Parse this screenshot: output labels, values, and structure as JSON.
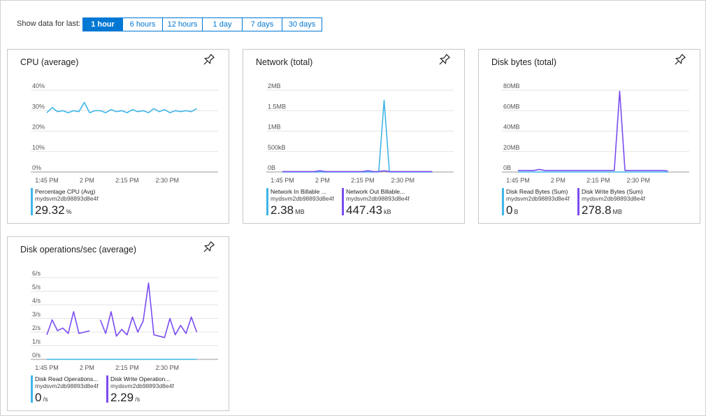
{
  "toolbar": {
    "label": "Show data for last:",
    "options": [
      "1 hour",
      "6 hours",
      "12 hours",
      "1 day",
      "7 days",
      "30 days"
    ],
    "selected_index": 0
  },
  "chart_data": [
    {
      "type": "line",
      "title": "CPU (average)",
      "x": [
        0,
        2,
        4,
        6,
        8,
        10,
        12,
        14,
        16,
        18,
        20,
        22,
        24,
        26,
        28,
        30,
        32,
        34,
        36,
        38,
        40,
        42,
        44,
        46,
        48,
        50,
        52,
        54,
        56
      ],
      "xlim": [
        -6,
        64
      ],
      "xticks": [
        {
          "value": 0,
          "label": "1:45 PM"
        },
        {
          "value": 15,
          "label": "2 PM"
        },
        {
          "value": 30,
          "label": "2:15 PM"
        },
        {
          "value": 45,
          "label": "2:30 PM"
        }
      ],
      "ylim": [
        0,
        40
      ],
      "yticks": [
        {
          "value": 0,
          "label": "0%"
        },
        {
          "value": 10,
          "label": "10%"
        },
        {
          "value": 20,
          "label": "20%"
        },
        {
          "value": 30,
          "label": "30%"
        },
        {
          "value": 40,
          "label": "40%"
        }
      ],
      "grid": true,
      "series": [
        {
          "name": "Percentage CPU (Avg)",
          "resource": "mydsvm2db98893d8e4f",
          "color": "#3fb6e8",
          "summary": 29.32,
          "summary_unit": "%",
          "values": [
            29,
            31.5,
            29.5,
            30,
            29,
            30,
            29.5,
            34,
            29,
            30,
            30,
            29,
            30.5,
            29.5,
            30,
            29,
            30.5,
            29.5,
            30,
            29,
            31,
            29.5,
            30.5,
            29,
            30,
            29.5,
            30,
            29.5,
            31
          ]
        }
      ]
    },
    {
      "type": "line",
      "title": "Network (total)",
      "x": [
        0,
        2,
        4,
        6,
        8,
        10,
        12,
        14,
        16,
        18,
        20,
        22,
        24,
        26,
        28,
        30,
        32,
        34,
        36,
        38,
        40,
        42,
        44,
        46,
        48,
        50,
        52,
        54,
        56
      ],
      "xlim": [
        -6,
        64
      ],
      "xticks": [
        {
          "value": 0,
          "label": "1:45 PM"
        },
        {
          "value": 15,
          "label": "2 PM"
        },
        {
          "value": 30,
          "label": "2:15 PM"
        },
        {
          "value": 45,
          "label": "2:30 PM"
        }
      ],
      "ylim": [
        0,
        2
      ],
      "yticks": [
        {
          "value": 0,
          "label": "0B"
        },
        {
          "value": 0.5,
          "label": "500kB"
        },
        {
          "value": 1,
          "label": "1MB"
        },
        {
          "value": 1.5,
          "label": "1.5MB"
        },
        {
          "value": 2,
          "label": "2MB"
        }
      ],
      "grid": true,
      "series": [
        {
          "name": "Network In Billable ...",
          "resource": "mydsvm2db98893d8e4f",
          "color": "#3fb6e8",
          "summary": 2.38,
          "summary_unit": "MB",
          "values": [
            0,
            0,
            0,
            0,
            0,
            0,
            0,
            0,
            0,
            0,
            0,
            0,
            0,
            0,
            0,
            0,
            0,
            0,
            0,
            1.75,
            0,
            0,
            0,
            0,
            0,
            0,
            0,
            0,
            0
          ]
        },
        {
          "name": "Network Out Billable...",
          "resource": "mydsvm2db98893d8e4f",
          "color": "#7a4cf0",
          "summary": 447.43,
          "summary_unit": "kB",
          "values": [
            0.01,
            0.01,
            0.01,
            0.01,
            0.01,
            0.01,
            0.01,
            0.03,
            0.01,
            0.01,
            0.01,
            0.01,
            0.01,
            0.01,
            0.01,
            0.01,
            0.03,
            0.01,
            0.01,
            0.03,
            0.01,
            0.01,
            0.01,
            0.01,
            0.01,
            0.01,
            0.01,
            0.01,
            0.01
          ]
        }
      ]
    },
    {
      "type": "line",
      "title": "Disk bytes (total)",
      "x": [
        0,
        2,
        4,
        6,
        8,
        10,
        12,
        14,
        16,
        18,
        20,
        22,
        24,
        26,
        28,
        30,
        32,
        34,
        36,
        38,
        40,
        42,
        44,
        46,
        48,
        50,
        52,
        54,
        56
      ],
      "xlim": [
        -6,
        64
      ],
      "xticks": [
        {
          "value": 0,
          "label": "1:45 PM"
        },
        {
          "value": 15,
          "label": "2 PM"
        },
        {
          "value": 30,
          "label": "2:15 PM"
        },
        {
          "value": 45,
          "label": "2:30 PM"
        }
      ],
      "ylim": [
        0,
        80
      ],
      "yticks": [
        {
          "value": 0,
          "label": "0B"
        },
        {
          "value": 20,
          "label": "20MB"
        },
        {
          "value": 40,
          "label": "40MB"
        },
        {
          "value": 60,
          "label": "60MB"
        },
        {
          "value": 80,
          "label": "80MB"
        }
      ],
      "grid": true,
      "series": [
        {
          "name": "Disk Read Bytes (Sum)",
          "resource": "mydsvm2db98893d8e4f",
          "color": "#3fb6e8",
          "summary": 0,
          "summary_unit": "B",
          "values": [
            0,
            0,
            0,
            0,
            0,
            0,
            0,
            0,
            0,
            0,
            0,
            0,
            0,
            0,
            0,
            0,
            0,
            0,
            0,
            0,
            0,
            0,
            0,
            0,
            0,
            0,
            0,
            0,
            0
          ]
        },
        {
          "name": "Disk Write Bytes (Sum)",
          "resource": "mydsvm2db98893d8e4f",
          "color": "#7a4cf0",
          "summary": 278.8,
          "summary_unit": "MB",
          "values": [
            1.5,
            1.5,
            1.5,
            1.5,
            2.5,
            1.5,
            1.5,
            1.5,
            1.5,
            1.5,
            1.5,
            1.5,
            1.5,
            1.5,
            1.5,
            1.5,
            1.5,
            1.5,
            1.5,
            79,
            1.5,
            1.5,
            1.5,
            1.5,
            1.5,
            1.5,
            1.5,
            1.5,
            1
          ]
        }
      ]
    },
    {
      "type": "line",
      "title": "Disk operations/sec (average)",
      "x": [
        0,
        2,
        4,
        6,
        8,
        10,
        12,
        14,
        16,
        18,
        20,
        22,
        24,
        26,
        28,
        30,
        32,
        34,
        36,
        38,
        40,
        42,
        44,
        46,
        48,
        50,
        52,
        54,
        56
      ],
      "xlim": [
        -6,
        64
      ],
      "xticks": [
        {
          "value": 0,
          "label": "1:45 PM"
        },
        {
          "value": 15,
          "label": "2 PM"
        },
        {
          "value": 30,
          "label": "2:15 PM"
        },
        {
          "value": 45,
          "label": "2:30 PM"
        }
      ],
      "ylim": [
        0,
        6
      ],
      "yticks": [
        {
          "value": 0,
          "label": "0/s"
        },
        {
          "value": 1,
          "label": "1/s"
        },
        {
          "value": 2,
          "label": "2/s"
        },
        {
          "value": 3,
          "label": "3/s"
        },
        {
          "value": 4,
          "label": "4/s"
        },
        {
          "value": 5,
          "label": "5/s"
        },
        {
          "value": 6,
          "label": "6/s"
        }
      ],
      "grid": true,
      "series": [
        {
          "name": "Disk Read Operations...",
          "resource": "mydsvm2db98893d8e4f",
          "color": "#3fb6e8",
          "summary": 0,
          "summary_unit": "/s",
          "values": [
            0,
            0,
            0,
            0,
            0,
            0,
            0,
            0,
            0,
            0,
            0,
            0,
            0,
            0,
            0,
            0,
            0,
            0,
            0,
            0,
            0,
            0,
            0,
            0,
            0,
            0,
            0,
            0,
            0
          ]
        },
        {
          "name": "Disk Write Operation...",
          "resource": "mydsvm2db98893d8e4f",
          "color": "#7a4cf0",
          "summary": 2.29,
          "summary_unit": "/s",
          "values": [
            1.8,
            2.9,
            2.1,
            2.3,
            1.9,
            3.5,
            1.9,
            2,
            2.1,
            null,
            2.9,
            1.9,
            3.5,
            1.7,
            2.2,
            1.8,
            3.1,
            2,
            2.8,
            5.6,
            1.8,
            1.7,
            1.6,
            3,
            1.8,
            2.5,
            1.9,
            3.1,
            2
          ]
        }
      ]
    }
  ]
}
